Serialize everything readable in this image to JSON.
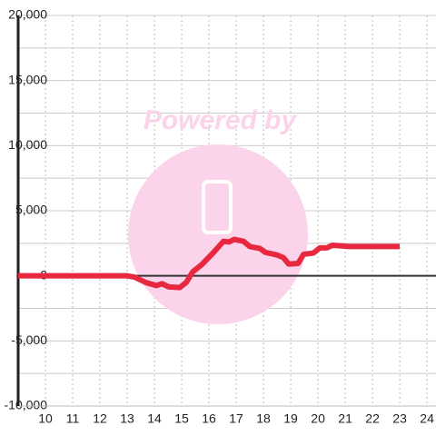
{
  "chart_data": {
    "type": "line",
    "watermark": "Powered by",
    "x": [
      9,
      13,
      13.27,
      13.67,
      14.07,
      14.27,
      14.53,
      14.93,
      15.17,
      15.4,
      15.73,
      16.17,
      16.53,
      16.73,
      16.93,
      17.27,
      17.5,
      17.87,
      18.07,
      18.5,
      18.73,
      18.93,
      19.27,
      19.47,
      19.83,
      20.07,
      20.33,
      20.53,
      20.87,
      21.13,
      23
    ],
    "series": [
      {
        "color": "#e8283f",
        "values": [
          0,
          0,
          -100,
          -500,
          -750,
          -600,
          -850,
          -900,
          -500,
          300,
          850,
          1800,
          2650,
          2600,
          2800,
          2650,
          2250,
          2100,
          1800,
          1600,
          1400,
          900,
          950,
          1650,
          1750,
          2150,
          2150,
          2350,
          2300,
          2250,
          2250
        ]
      }
    ],
    "xlim": [
      9,
      24.33
    ],
    "xticks": [
      10,
      11,
      12,
      13,
      14,
      15,
      16,
      17,
      18,
      19,
      20,
      21,
      22,
      23,
      24
    ],
    "ylim": [
      -10000,
      20000
    ],
    "yticks": [
      {
        "value": -10000,
        "label": "-10,000"
      },
      {
        "value": -5000,
        "label": "-5,000"
      },
      0,
      {
        "value": 5000,
        "label": "5,000"
      },
      {
        "value": 10000,
        "label": "10,000"
      },
      {
        "value": 15000,
        "label": "15,000"
      },
      {
        "value": 20000,
        "label": "20,000"
      }
    ],
    "grid": true
  }
}
